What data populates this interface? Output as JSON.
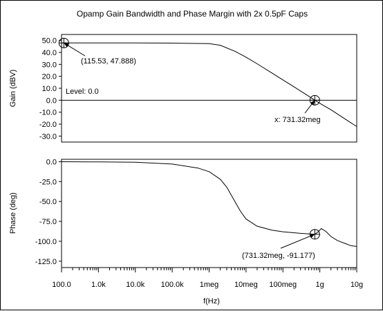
{
  "chart_data": {
    "title": "Opamp Gain Bandwidth and Phase Margin with 2x 0.5pF Caps",
    "xlabel": "f(Hz)",
    "x_scale": "log",
    "x_range": [
      100,
      10000000000
    ],
    "x_ticks": [
      {
        "v": 100,
        "label": "100.0"
      },
      {
        "v": 1000,
        "label": "1.0k"
      },
      {
        "v": 10000,
        "label": "10.0k"
      },
      {
        "v": 100000,
        "label": "100.0k"
      },
      {
        "v": 1000000,
        "label": "1meg"
      },
      {
        "v": 10000000,
        "label": "10meg"
      },
      {
        "v": 100000000,
        "label": "100meg"
      },
      {
        "v": 1000000000,
        "label": "1g"
      },
      {
        "v": 10000000000,
        "label": "10g"
      }
    ],
    "panels": [
      {
        "name": "gain",
        "type": "line",
        "ylabel": "Gain (dBV)",
        "ylim": [
          -35,
          55
        ],
        "y_ticks": [
          "50.0",
          "40.0",
          "30.0",
          "20.0",
          "10.0",
          "0.0",
          "-10.0",
          "-20.0",
          "-30.0"
        ],
        "y_tick_values": [
          50,
          40,
          30,
          20,
          10,
          0,
          -10,
          -20,
          -30
        ],
        "level_text": "Level: 0.0",
        "level_value": 0,
        "series": [
          {
            "x": [
              100,
              1000,
              10000,
              100000,
              1000000,
              2000000,
              5000000,
              10000000,
              20000000,
              50000000,
              100000000,
              200000000,
              500000000,
              731320000,
              1000000000,
              2000000000,
              5000000000,
              10000000000
            ],
            "y": [
              47.9,
              47.9,
              47.9,
              47.8,
              47.3,
              46.0,
              41.0,
              36.0,
              30.5,
              22.8,
              17.0,
              11.2,
              3.3,
              0.0,
              -2.6,
              -8.0,
              -16.0,
              -22.0
            ]
          }
        ],
        "markers": [
          {
            "x": 115.53,
            "y": 47.888,
            "label": "(115.53, 47.888)"
          },
          {
            "x": 731320000,
            "y": 0.0,
            "label": "x: 731.32meg"
          }
        ]
      },
      {
        "name": "phase",
        "type": "line",
        "ylabel": "Phase (deg)",
        "ylim": [
          -133,
          3
        ],
        "y_ticks": [
          "0.0",
          "-25.0",
          "-50.0",
          "-75.0",
          "-100.0",
          "-125.0"
        ],
        "y_tick_values": [
          0,
          -25,
          -50,
          -75,
          -100,
          -125
        ],
        "series": [
          {
            "x": [
              100,
              1000,
              10000,
              100000,
              500000,
              1000000,
              2000000,
              3000000,
              5000000,
              7000000,
              10000000,
              20000000,
              50000000,
              100000000,
              300000000,
              731320000,
              900000000,
              1100000000,
              1500000000,
              2000000000,
              3000000000,
              5000000000,
              7000000000,
              10000000000
            ],
            "y": [
              0.0,
              -0.3,
              -0.6,
              -3.0,
              -8.0,
              -12.5,
              -22.0,
              -32.0,
              -50.0,
              -62.0,
              -72.0,
              -81.0,
              -86.0,
              -88.0,
              -90.0,
              -91.2,
              -88.0,
              -84.0,
              -88.0,
              -94.0,
              -99.0,
              -103.0,
              -105.5,
              -106.5
            ]
          }
        ],
        "markers": [
          {
            "x": 731320000,
            "y": -91.177,
            "label": "(731.32meg, -91.177)"
          }
        ]
      }
    ]
  }
}
